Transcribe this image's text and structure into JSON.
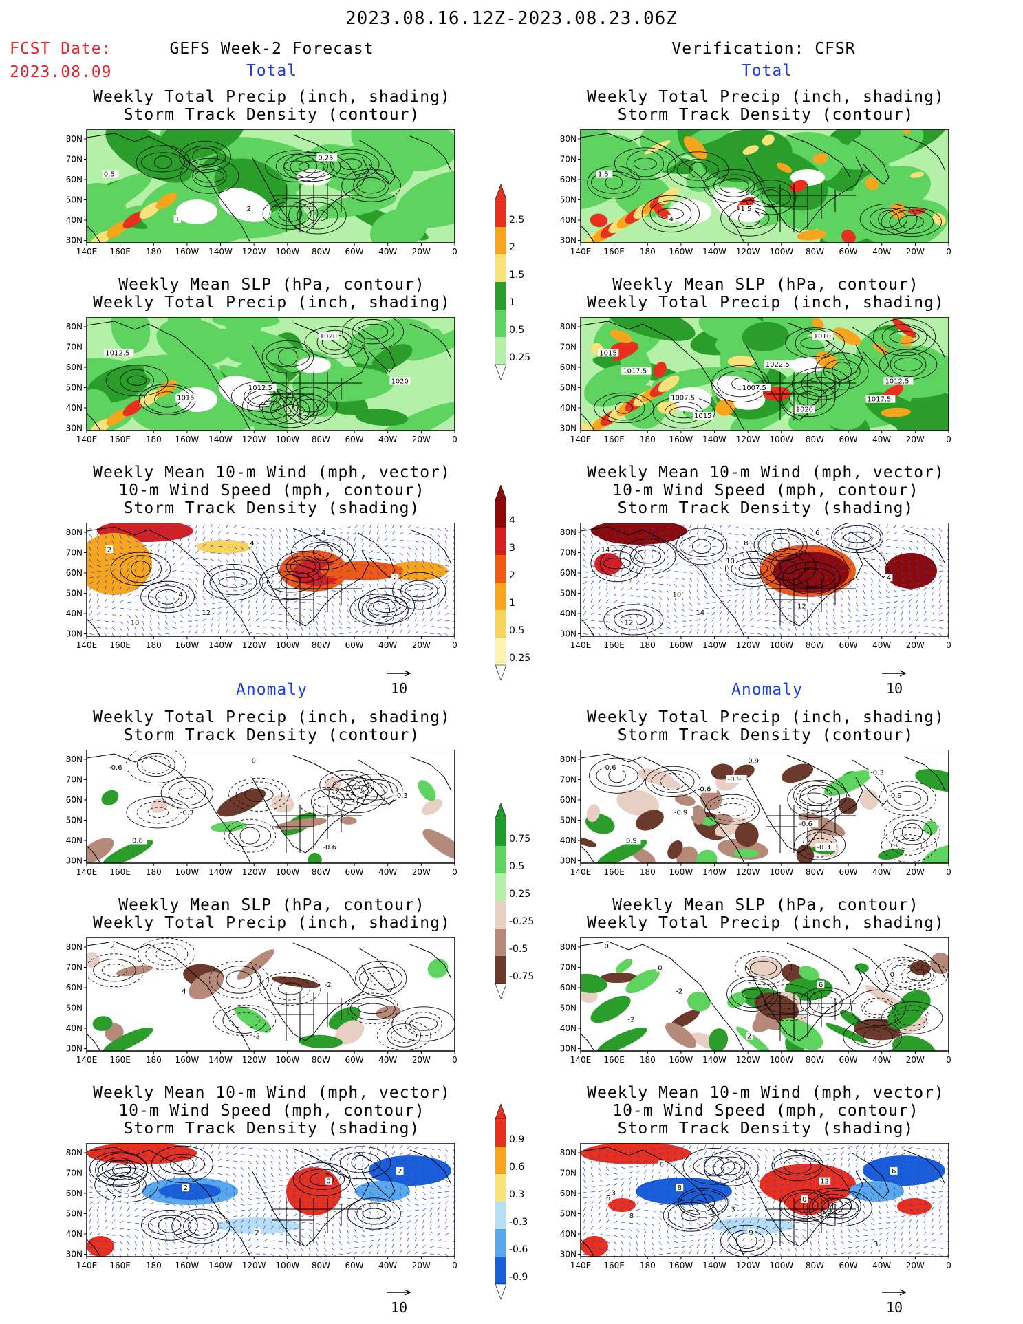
{
  "header": {
    "date_range": "2023.08.16.12Z-2023.08.23.06Z",
    "fcst_label": "FCST Date:",
    "fcst_date": "2023.08.09",
    "left_title": "GEFS Week-2 Forecast",
    "right_title": "Verification: CFSR",
    "total_label": "Total",
    "anomaly_label": "Anomaly"
  },
  "titles": {
    "precip_storm": [
      "Weekly Total Precip (inch, shading)",
      "Storm Track Density (contour)"
    ],
    "slp_precip": [
      "Weekly Mean SLP (hPa, contour)",
      "Weekly Total Precip (inch, shading)"
    ],
    "wind": [
      "Weekly Mean 10-m Wind (mph, vector)",
      "10-m Wind Speed (mph, contour)",
      "Storm Track Density (shading)"
    ]
  },
  "axes": {
    "lat": [
      "80N",
      "70N",
      "60N",
      "50N",
      "40N",
      "30N"
    ],
    "lon": [
      "140E",
      "160E",
      "180",
      "160W",
      "140W",
      "120W",
      "100W",
      "80W",
      "60W",
      "40W",
      "20W",
      "0"
    ]
  },
  "vector_ref": "10",
  "colorbars": {
    "precip_total": {
      "labels": [
        "2.5",
        "2",
        "1.5",
        "1",
        "0.5",
        "0.25"
      ],
      "colors": [
        "#e8301e",
        "#f7a51c",
        "#f9e27a",
        "#2a9d2a",
        "#5fd35f",
        "#b4f0a8"
      ]
    },
    "storm_total": {
      "labels": [
        "4",
        "3",
        "2",
        "1",
        "0.5",
        "0.25"
      ],
      "colors": [
        "#8b0a0a",
        "#d42020",
        "#ee5a16",
        "#f7a51c",
        "#f9d45a",
        "#fdf3b0"
      ]
    },
    "precip_anom": {
      "labels": [
        "0.75",
        "0.5",
        "0.25",
        "-0.25",
        "-0.5",
        "-0.75"
      ],
      "colors": [
        "#1f9b2e",
        "#5fd35f",
        "#b4f0a8",
        "#e8cfc4",
        "#b58a7a",
        "#6b3a2c"
      ]
    },
    "storm_anom": {
      "labels": [
        "0.9",
        "0.6",
        "0.3",
        "-0.3",
        "-0.6",
        "-0.9"
      ],
      "colors": [
        "#e8301e",
        "#f7a51c",
        "#f9e27a",
        "#b8def6",
        "#5aa8ec",
        "#1b5fd8"
      ]
    }
  },
  "maps": [
    {
      "id": "L1",
      "labels": [
        "0.5",
        "1",
        "2",
        "0.25"
      ]
    },
    {
      "id": "R1",
      "labels": [
        "1.5",
        "4",
        "1.5"
      ]
    },
    {
      "id": "L2",
      "labels": [
        "1012.5",
        "1015",
        "1012.5",
        "1020",
        "1020"
      ]
    },
    {
      "id": "R2",
      "labels": [
        "1015",
        "1007.5",
        "1007.5",
        "1010",
        "1012.5",
        "1017.5",
        "1015",
        "1022.5",
        "1020",
        "1017.5"
      ]
    },
    {
      "id": "L3",
      "labels": [
        "2",
        "4",
        "4",
        "4",
        "2",
        "10",
        "12"
      ]
    },
    {
      "id": "R3",
      "labels": [
        "14",
        "10",
        "8",
        "6",
        "4",
        "12",
        "14",
        "10",
        "12"
      ]
    },
    {
      "id": "L4",
      "labels": [
        "-0.6",
        "-0.3",
        "0",
        "-0.6",
        "-0.3",
        "0.6"
      ]
    },
    {
      "id": "R4",
      "labels": [
        "-0.6",
        "-0.9",
        "-0.9",
        "-0.3",
        "-0.9",
        "0.9",
        "-0.6",
        "-0.9",
        "-0.6",
        "-0.3"
      ]
    },
    {
      "id": "L5",
      "labels": [
        "2",
        "4",
        "-2",
        "-2"
      ]
    },
    {
      "id": "R5",
      "labels": [
        "0",
        "-2",
        "2",
        "6",
        "0",
        "-2",
        "0"
      ]
    },
    {
      "id": "L6",
      "labels": [
        "2",
        "2",
        "2",
        "0",
        "2"
      ]
    },
    {
      "id": "R6",
      "labels": [
        "6",
        "8",
        "9",
        "12",
        "6",
        "8",
        "6",
        "3",
        "0",
        "3",
        "3"
      ]
    }
  ],
  "palette": {
    "precip": [
      "#b4f0a8",
      "#5fd35f",
      "#2a9d2a",
      "#f9e27a",
      "#f7a51c",
      "#e8301e"
    ],
    "storm": [
      "#fdf3b0",
      "#f9d45a",
      "#f7a51c",
      "#ee5a16",
      "#d42020",
      "#8b0a0a"
    ],
    "brown": [
      "#e8cfc4",
      "#b58a7a",
      "#6b3a2c"
    ],
    "blue": [
      "#b8def6",
      "#5aa8ec",
      "#1b5fd8"
    ]
  }
}
